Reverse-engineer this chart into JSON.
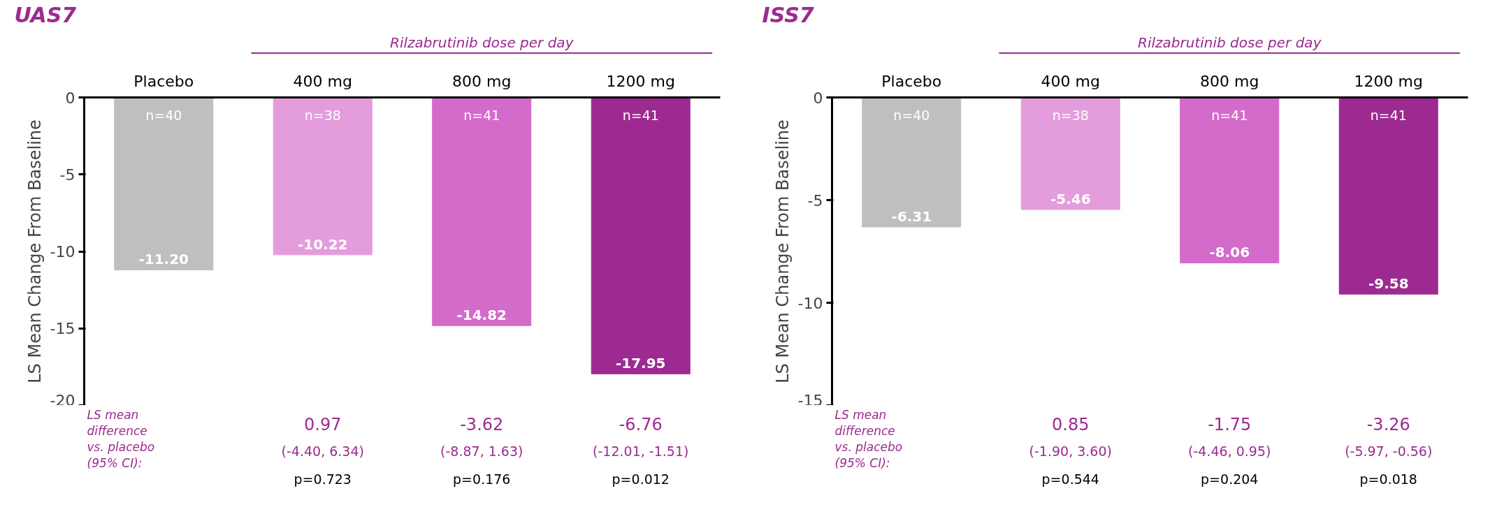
{
  "chart_data": [
    {
      "type": "bar",
      "title": "UAS7",
      "ylabel": "LS Mean Change From Baseline",
      "categories": [
        "Placebo",
        "400 mg",
        "800 mg",
        "1200 mg"
      ],
      "values": [
        -11.2,
        -10.22,
        -14.82,
        -17.95
      ],
      "value_labels": [
        "-11.20",
        "-10.22",
        "-14.82",
        "-17.95"
      ],
      "colors": [
        "#bfbfbf",
        "#e39cdc",
        "#d46ac9",
        "#9c2a91"
      ],
      "ylim": [
        -20,
        0
      ],
      "yticks": [
        0,
        -5,
        -10,
        -15,
        -20
      ],
      "grid": false,
      "annotations": [
        "Rilzabrutinib dose per day",
        "LS mean\ndifference\nvs. placebo\n(95% CI):",
        "n=40",
        "n=38",
        "n=41",
        "n=41",
        "0.97",
        "(-4.40, 6.34)",
        "p=0.723",
        "-3.62",
        "(-8.87, 1.63)",
        "p=0.176",
        "-6.76",
        "(-12.01, -1.51)",
        "p=0.012"
      ]
    },
    {
      "type": "bar",
      "title": "ISS7",
      "ylabel": "LS Mean Change From Baseline",
      "categories": [
        "Placebo",
        "400 mg",
        "800 mg",
        "1200 mg"
      ],
      "values": [
        -6.31,
        -5.46,
        -8.06,
        -9.58
      ],
      "value_labels": [
        "-6.31",
        "-5.46",
        "-8.06",
        "-9.58"
      ],
      "colors": [
        "#bfbfbf",
        "#e39cdc",
        "#d46ac9",
        "#9c2a91"
      ],
      "ylim": [
        -15,
        0
      ],
      "yticks": [
        0,
        -5,
        -10,
        -15
      ],
      "grid": false,
      "annotations": [
        "Rilzabrutinib dose per day",
        "LS mean\ndifference\nvs. placebo\n(95% CI):",
        "n=40",
        "n=38",
        "n=41",
        "n=41",
        "0.85",
        "(-1.90, 3.60)",
        "p=0.544",
        "-1.75",
        "(-4.46, 0.95)",
        "p=0.204",
        "-3.26",
        "(-5.97, -0.56)",
        "p=0.018"
      ]
    }
  ]
}
